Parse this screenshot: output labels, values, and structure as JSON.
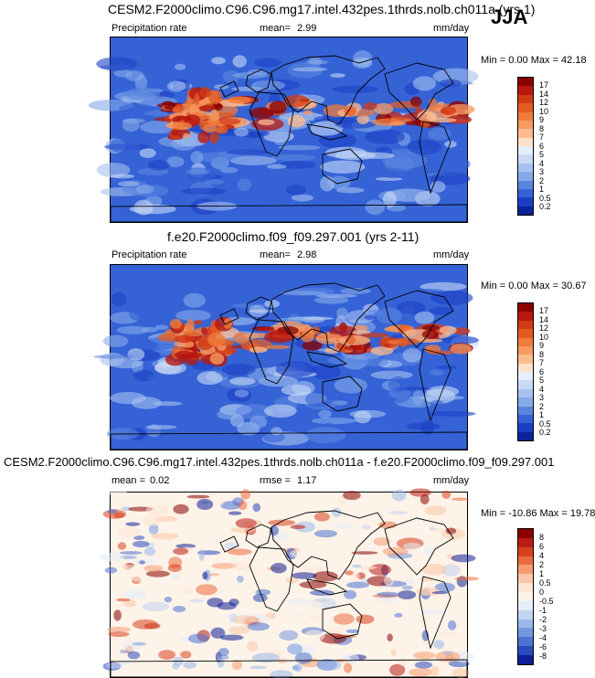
{
  "season": "JJA",
  "panels": [
    {
      "title": "CESM2.F2000climo.C96.C96.mg17.intel.432pes.1thrds.nolb.ch011a (yrs 1)",
      "left_label": "Precipitation rate",
      "stat_label": "mean=",
      "stat_value": "2.99",
      "units": "mm/day",
      "minmax": "Min =  0.00 Max = 42.18",
      "colorbar_ticks": [
        "17",
        "14",
        "12",
        "10",
        "9",
        "8",
        "7",
        "6",
        "5",
        "4",
        "3",
        "2",
        "1",
        "0.5",
        "0.2"
      ],
      "colorbar_colors": [
        "#8b0000",
        "#b7180f",
        "#d23a14",
        "#e45b22",
        "#f07c3c",
        "#f89a61",
        "#fbbb8f",
        "#fde2c9",
        "#e6efff",
        "#c8daf6",
        "#a7c2f0",
        "#86aae8",
        "#5b86df",
        "#3563d6",
        "#1b3fc4",
        "#0b2399"
      ],
      "style": "precip"
    },
    {
      "title": "f.e20.F2000climo.f09_f09.297.001 (yrs 2-11)",
      "left_label": "Precipitation rate",
      "stat_label": "mean=",
      "stat_value": "2.98",
      "units": "mm/day",
      "minmax": "Min =  0.00 Max = 30.67",
      "colorbar_ticks": [
        "17",
        "14",
        "12",
        "10",
        "9",
        "8",
        "7",
        "6",
        "5",
        "4",
        "3",
        "2",
        "1",
        "0.5",
        "0.2"
      ],
      "colorbar_colors": [
        "#8b0000",
        "#b7180f",
        "#d23a14",
        "#e45b22",
        "#f07c3c",
        "#f89a61",
        "#fbbb8f",
        "#fde2c9",
        "#e6efff",
        "#c8daf6",
        "#a7c2f0",
        "#86aae8",
        "#5b86df",
        "#3563d6",
        "#1b3fc4",
        "#0b2399"
      ],
      "style": "precip"
    },
    {
      "title": "CESM2.F2000climo.C96.C96.mg17.intel.432pes.1thrds.nolb.ch011a - f.e20.F2000climo.f09_f09.297.001",
      "left_label": "mean =",
      "left_value": "0.02",
      "stat_label": "rmse =",
      "stat_value": "1.17",
      "units": "mm/day",
      "minmax": "Min = -10.86 Max =  19.78",
      "colorbar_ticks": [
        "8",
        "6",
        "4",
        "2",
        "1",
        "0.5",
        "0",
        "-0.5",
        "-1",
        "-2",
        "-3",
        "-4",
        "-6",
        "-8"
      ],
      "colorbar_colors": [
        "#8b0000",
        "#b81c14",
        "#d8401d",
        "#ec6b3e",
        "#f59a73",
        "#fbc6a8",
        "#fde6d5",
        "#fdf3e8",
        "#e4edf9",
        "#c1d4f2",
        "#9bb8ea",
        "#7498e0",
        "#4d73d1",
        "#2a4bbd",
        "#0e1f96"
      ],
      "style": "diff"
    }
  ]
}
